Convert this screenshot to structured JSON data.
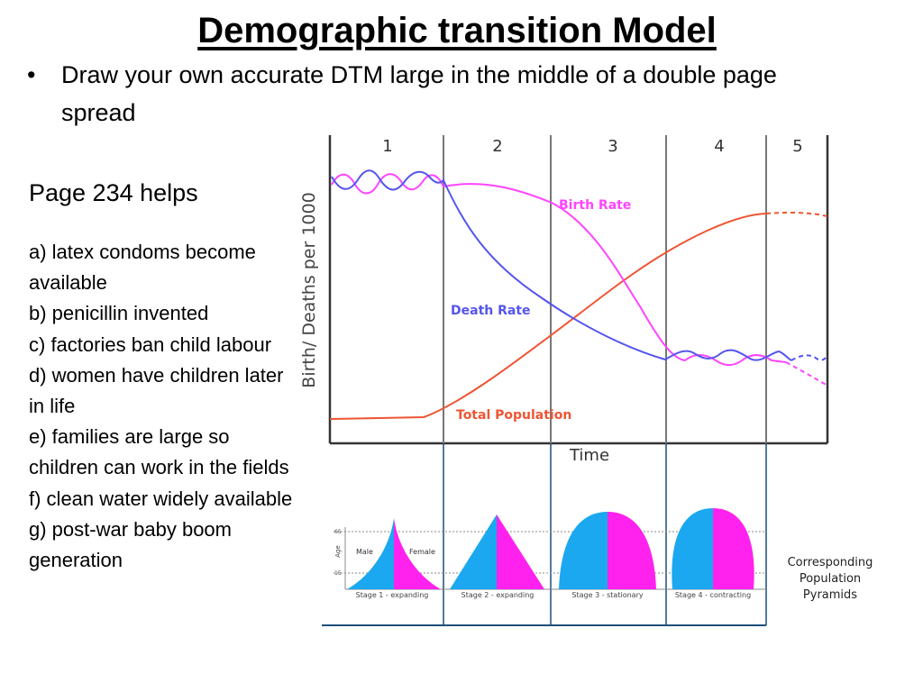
{
  "slide": {
    "title": "Demographic transition Model",
    "bullet": "Draw your own accurate DTM large in the middle of a double page spread",
    "helps": "Page 234 helps",
    "items": [
      "a) latex condoms become available",
      "b) penicillin invented",
      "c) factories ban child labour",
      "d) women have children later in life",
      "e) families are large so children can work in the fields",
      "f) clean water widely available",
      "g) post-war baby boom generation"
    ]
  },
  "diagram": {
    "stages": [
      "1",
      "2",
      "3",
      "4",
      "5"
    ],
    "y_axis_label": "Birth/ Deaths per 1000",
    "x_axis_label": "Time",
    "curve_labels": {
      "birth": "Birth Rate",
      "death": "Death Rate",
      "population": "Total Population"
    },
    "colors": {
      "birth": "#ff44ff",
      "death": "#5555ee",
      "population": "#ee5533",
      "male": "#1ba8f0",
      "female": "#ff22ee",
      "frame": "#1d4f7a"
    },
    "pyramids": {
      "age_label": "Age",
      "age_65": "65",
      "age_15": "15",
      "male_label": "Male",
      "female_label": "Female",
      "captions": [
        "Stage 1 - expanding",
        "Stage 2 - expanding",
        "Stage 3 - stationary",
        "Stage 4 - contracting"
      ],
      "side_label": [
        "Corresponding",
        "Population",
        "Pyramids"
      ]
    }
  }
}
